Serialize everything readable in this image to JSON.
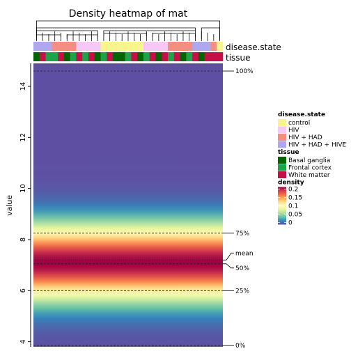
{
  "chart_data": {
    "type": "heatmap",
    "title": "Density heatmap of mat",
    "ylabel": "value",
    "ylim": [
      3.8,
      14.9
    ],
    "y_ticks": [
      4,
      6,
      8,
      10,
      12,
      14
    ],
    "density_peak_y": 7.1,
    "density_sd": 1.0,
    "density_max": 0.2,
    "quantiles": [
      {
        "label": "100%",
        "value": 14.6
      },
      {
        "label": "75%",
        "value": 8.25
      },
      {
        "label": "mean",
        "value": 7.2
      },
      {
        "label": "50%",
        "value": 7.05
      },
      {
        "label": "25%",
        "value": 6.0
      },
      {
        "label": "0%",
        "value": 3.85
      }
    ],
    "annotations": [
      {
        "name": "disease.state",
        "values": [
          "HIV + HAD + HIVE",
          "HIV + HAD + HIVE",
          "HIV + HAD + HIVE",
          "HIV + HAD",
          "HIV + HAD",
          "HIV + HAD",
          "HIV + HAD",
          "HIV",
          "HIV",
          "HIV",
          "HIV",
          "control",
          "control",
          "control",
          "control",
          "control",
          "control",
          "control",
          "HIV",
          "HIV",
          "HIV",
          "HIV",
          "HIV + HAD",
          "HIV + HAD",
          "HIV + HAD",
          "HIV + HAD",
          "HIV + HAD + HIVE",
          "HIV + HAD + HIVE",
          "HIV + HAD + HIVE",
          "HIV + HAD",
          "control"
        ]
      },
      {
        "name": "tissue",
        "values": [
          "Basal ganglia",
          "White matter",
          "Frontal cortex",
          "Frontal cortex",
          "White matter",
          "Basal ganglia",
          "Frontal cortex",
          "White matter",
          "Frontal cortex",
          "White matter",
          "Basal ganglia",
          "Frontal cortex",
          "White matter",
          "Basal ganglia",
          "Basal ganglia",
          "Frontal cortex",
          "White matter",
          "Basal ganglia",
          "Frontal cortex",
          "White matter",
          "Basal ganglia",
          "White matter",
          "Frontal cortex",
          "White matter",
          "Basal ganglia",
          "Frontal cortex",
          "White matter",
          "Basal ganglia",
          "White matter",
          "White matter",
          "White matter"
        ]
      }
    ],
    "legends": [
      {
        "title": "disease.state",
        "items": [
          {
            "label": "control",
            "color": "#f7f58c"
          },
          {
            "label": "HIV",
            "color": "#f5c8f5"
          },
          {
            "label": "HIV + HAD",
            "color": "#f38f80"
          },
          {
            "label": "HIV + HAD + HIVE",
            "color": "#b0a8ee"
          }
        ]
      },
      {
        "title": "tissue",
        "items": [
          {
            "label": "Basal ganglia",
            "color": "#006400"
          },
          {
            "label": "Frontal cortex",
            "color": "#1ea24a"
          },
          {
            "label": "White matter",
            "color": "#c40f48"
          }
        ]
      },
      {
        "title": "density",
        "ticks": [
          "0.2",
          "0.15",
          "0.1",
          "0.05",
          "0"
        ]
      }
    ],
    "colormap": [
      "#5e4fa2",
      "#3288bd",
      "#66c2a5",
      "#abdda4",
      "#e6f598",
      "#ffffbf",
      "#fee08b",
      "#fdae61",
      "#f46d43",
      "#d53e4f",
      "#9e0142"
    ]
  }
}
